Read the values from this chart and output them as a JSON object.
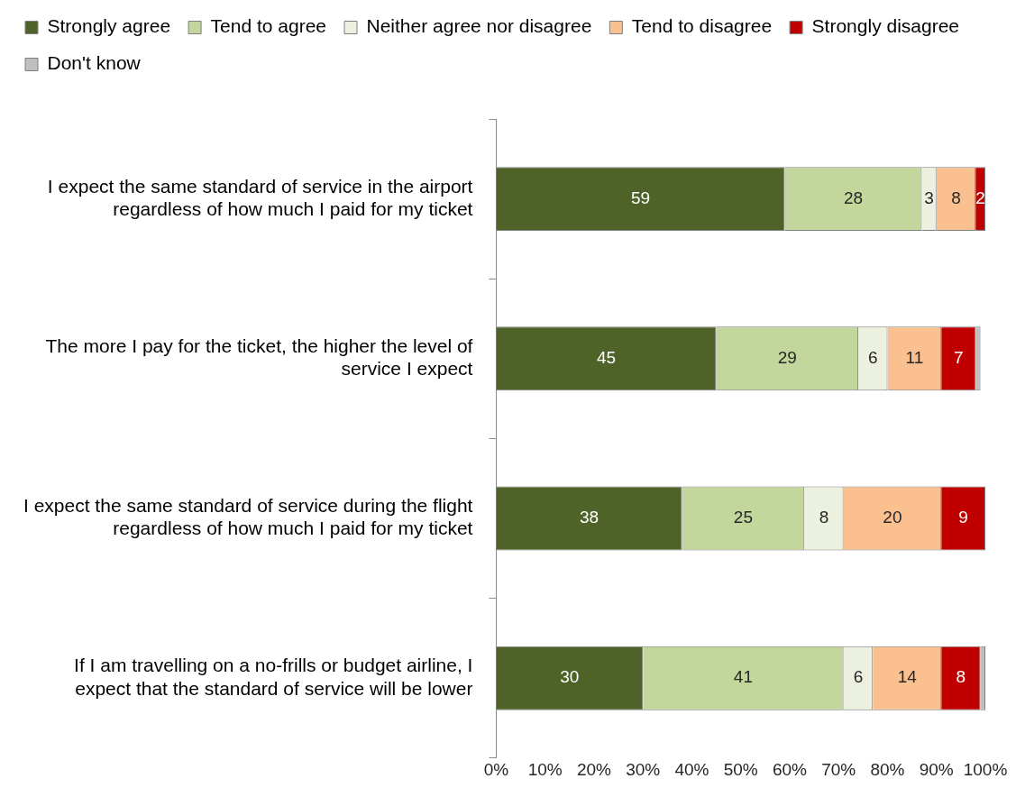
{
  "chart_data": {
    "type": "bar",
    "orientation": "horizontal",
    "stacked": true,
    "categories": [
      "I expect the same standard of service in the airport regardless of how much I paid for my ticket",
      "The more I pay for the ticket, the higher the level of service I expect",
      "I expect the same standard of service during the flight regardless of how much I paid for my ticket",
      "If I am travelling on a no-frills or budget airline, I expect that the standard of service will be lower"
    ],
    "series": [
      {
        "name": "Strongly agree",
        "color": "#4f6228",
        "values": [
          59,
          45,
          38,
          30
        ],
        "value_labels": [
          "59",
          "45",
          "38",
          "30"
        ]
      },
      {
        "name": "Tend to agree",
        "color": "#c3d69b",
        "values": [
          28,
          29,
          25,
          41
        ],
        "value_labels": [
          "28",
          "29",
          "25",
          "41"
        ]
      },
      {
        "name": "Neither agree nor disagree",
        "color": "#ebf1de",
        "values": [
          3,
          6,
          8,
          6
        ],
        "value_labels": [
          "3",
          "6",
          "8",
          "6"
        ]
      },
      {
        "name": "Tend to disagree",
        "color": "#fac090",
        "values": [
          8,
          11,
          20,
          14
        ],
        "value_labels": [
          "8",
          "11",
          "20",
          "14"
        ]
      },
      {
        "name": "Strongly disagree",
        "color": "#c00000",
        "values": [
          2,
          7,
          9,
          8
        ],
        "value_labels": [
          "2",
          "7",
          "9",
          "8"
        ]
      },
      {
        "name": "Don't know",
        "color": "#bfbfbf",
        "values": [
          0,
          1,
          0,
          1
        ],
        "value_labels": [
          null,
          null,
          null,
          null
        ]
      }
    ],
    "xlim": [
      0,
      100
    ],
    "xticks": [
      {
        "value": 0,
        "label": "0%"
      },
      {
        "value": 10,
        "label": "10%"
      },
      {
        "value": 20,
        "label": "20%"
      },
      {
        "value": 30,
        "label": "30%"
      },
      {
        "value": 40,
        "label": "40%"
      },
      {
        "value": 50,
        "label": "50%"
      },
      {
        "value": 60,
        "label": "60%"
      },
      {
        "value": 70,
        "label": "70%"
      },
      {
        "value": 80,
        "label": "80%"
      },
      {
        "value": 90,
        "label": "90%"
      },
      {
        "value": 100,
        "label": "100%"
      }
    ],
    "grid": false,
    "legend": "top"
  }
}
